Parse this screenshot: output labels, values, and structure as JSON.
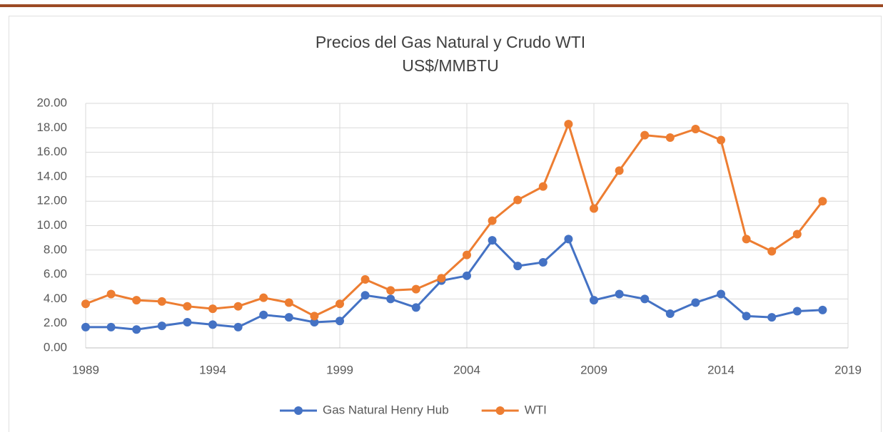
{
  "chart_data": {
    "type": "line",
    "title": "Precios del Gas Natural y Crudo WTI",
    "subtitle": "US$/MMBTU",
    "x": [
      1989,
      1990,
      1991,
      1992,
      1993,
      1994,
      1995,
      1996,
      1997,
      1998,
      1999,
      2000,
      2001,
      2002,
      2003,
      2004,
      2005,
      2006,
      2007,
      2008,
      2009,
      2010,
      2011,
      2012,
      2013,
      2014,
      2015,
      2016,
      2017,
      2018
    ],
    "series": [
      {
        "name": "Gas Natural Henry Hub",
        "color": "#4472c4",
        "values": [
          1.7,
          1.7,
          1.5,
          1.8,
          2.1,
          1.9,
          1.7,
          2.7,
          2.5,
          2.1,
          2.2,
          4.3,
          4.0,
          3.3,
          5.5,
          5.9,
          8.8,
          6.7,
          7.0,
          8.9,
          3.9,
          4.4,
          4.0,
          2.8,
          3.7,
          4.4,
          2.6,
          2.5,
          3.0,
          3.1
        ]
      },
      {
        "name": "WTI",
        "color": "#ed7d31",
        "values": [
          3.6,
          4.4,
          3.9,
          3.8,
          3.4,
          3.2,
          3.4,
          4.1,
          3.7,
          2.6,
          3.6,
          5.6,
          4.7,
          4.8,
          5.7,
          7.6,
          10.4,
          12.1,
          13.2,
          18.3,
          11.4,
          14.5,
          17.4,
          17.2,
          17.9,
          17.0,
          8.9,
          7.9,
          9.3,
          12.0
        ]
      }
    ],
    "xlim": [
      1989,
      2019
    ],
    "xticks": [
      1989,
      1994,
      1999,
      2004,
      2009,
      2014,
      2019
    ],
    "ylim": [
      0,
      20
    ],
    "yticks": [
      {
        "value": 0,
        "label": "0.00"
      },
      {
        "value": 2,
        "label": "2.00"
      },
      {
        "value": 4,
        "label": "4.00"
      },
      {
        "value": 6,
        "label": "6.00"
      },
      {
        "value": 8,
        "label": "8.00"
      },
      {
        "value": 10,
        "label": "10.00"
      },
      {
        "value": 12,
        "label": "12.00"
      },
      {
        "value": 14,
        "label": "14.00"
      },
      {
        "value": 16,
        "label": "16.00"
      },
      {
        "value": 18,
        "label": "18.00"
      },
      {
        "value": 20,
        "label": "20.00"
      }
    ],
    "grid": true,
    "legend": "bottom"
  }
}
